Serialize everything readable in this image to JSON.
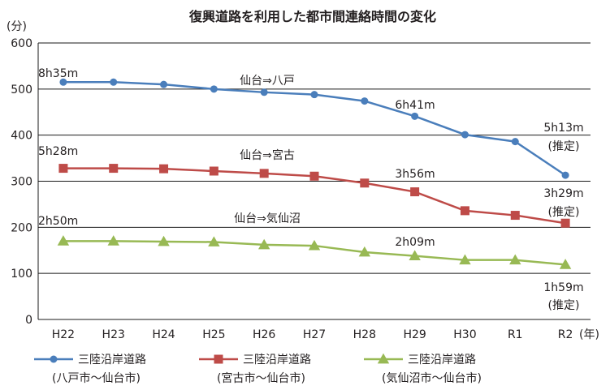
{
  "chart_data": {
    "type": "line",
    "title": "復興道路を利用した都市間連絡時間の変化",
    "y_unit": "(分)",
    "x_unit": "(年)",
    "categories": [
      "H22",
      "H23",
      "H24",
      "H25",
      "H26",
      "H27",
      "H28",
      "H29",
      "H30",
      "R1",
      "R2"
    ],
    "ylim": [
      0,
      600
    ],
    "yticks": [
      0,
      100,
      200,
      300,
      400,
      500,
      600
    ],
    "grid": true,
    "series": [
      {
        "name": "三陸沿岸道路",
        "name_sub": "(八戸市～仙台市)",
        "route_label": "仙台⇒八戸",
        "color": "#4a7ebb",
        "marker": "circle",
        "values": [
          515,
          515,
          510,
          500,
          493,
          488,
          474,
          441,
          401,
          386,
          313
        ]
      },
      {
        "name": "三陸沿岸道路",
        "name_sub": "(宮古市～仙台市)",
        "route_label": "仙台⇒宮古",
        "color": "#be4b48",
        "marker": "square",
        "values": [
          328,
          328,
          327,
          322,
          317,
          311,
          296,
          277,
          236,
          226,
          209
        ]
      },
      {
        "name": "三陸沿岸道路",
        "name_sub": "(気仙沼市～仙台市)",
        "route_label": "仙台⇒気仙沼",
        "color": "#98b954",
        "marker": "triangle",
        "values": [
          170,
          170,
          169,
          168,
          162,
          160,
          146,
          138,
          129,
          129,
          119
        ]
      }
    ],
    "annotations": [
      {
        "series": 0,
        "text": "8h35m"
      },
      {
        "series": 0,
        "text": "6h41m"
      },
      {
        "series": 0,
        "text": "5h13m"
      },
      {
        "series": 0,
        "text": "(推定)"
      },
      {
        "series": 1,
        "text": "5h28m"
      },
      {
        "series": 1,
        "text": "3h56m"
      },
      {
        "series": 1,
        "text": "3h29m"
      },
      {
        "series": 1,
        "text": "(推定)"
      },
      {
        "series": 2,
        "text": "2h50m"
      },
      {
        "series": 2,
        "text": "2h09m"
      },
      {
        "series": 2,
        "text": "1h59m"
      },
      {
        "series": 2,
        "text": "(推定)"
      }
    ]
  }
}
